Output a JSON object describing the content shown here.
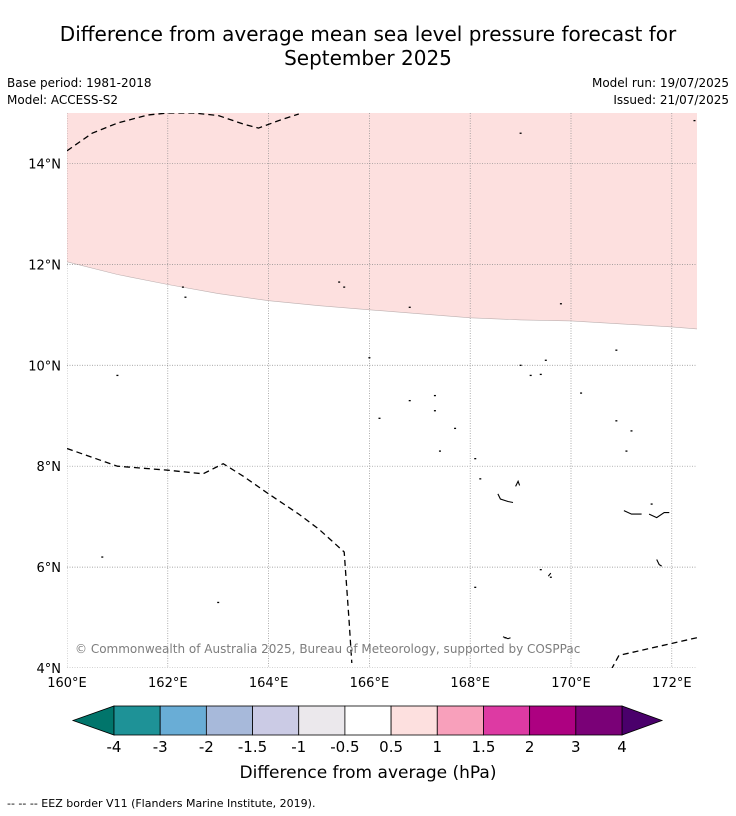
{
  "title_line1": "Difference from average mean sea level pressure forecast for",
  "title_line2": "September 2025",
  "base_period": "Base period: 1981-2018",
  "model": "Model: ACCESS-S2",
  "model_run": "Model run: 19/07/2025",
  "issued": "Issued: 21/07/2025",
  "copyright": "© Commonwealth of Australia 2025, Bureau of Meteorology, supported by COSPPac",
  "footer": "--  --  -- EEZ border V11 (Flanders Marine Institute, 2019).",
  "map": {
    "lon_range": [
      160,
      172.5
    ],
    "lat_range": [
      4,
      15
    ],
    "lon_ticks": [
      "160°E",
      "162°E",
      "164°E",
      "166°E",
      "168°E",
      "170°E",
      "172°E"
    ],
    "lat_ticks": [
      "4°N",
      "6°N",
      "8°N",
      "10°N",
      "12°N",
      "14°N"
    ],
    "anomaly_region": {
      "category": "0.5 to 1",
      "color": "#fde0df",
      "southern_boundary": [
        [
          160,
          12.05
        ],
        [
          161,
          11.8
        ],
        [
          162,
          11.6
        ],
        [
          163,
          11.42
        ],
        [
          164,
          11.28
        ],
        [
          165,
          11.18
        ],
        [
          166,
          11.1
        ],
        [
          167,
          11.02
        ],
        [
          168,
          10.94
        ],
        [
          169,
          10.9
        ],
        [
          170,
          10.88
        ],
        [
          171,
          10.82
        ],
        [
          172,
          10.76
        ],
        [
          172.5,
          10.72
        ]
      ]
    },
    "eez_north": [
      [
        160,
        14.25
      ],
      [
        160.5,
        14.6
      ],
      [
        161,
        14.8
      ],
      [
        161.6,
        14.96
      ],
      [
        162,
        15.0
      ],
      [
        162.5,
        15.0
      ],
      [
        163,
        14.95
      ],
      [
        163.5,
        14.78
      ],
      [
        163.8,
        14.7
      ],
      [
        164.2,
        14.85
      ],
      [
        164.6,
        14.98
      ]
    ],
    "eez_south": [
      [
        160,
        8.35
      ],
      [
        161,
        8.0
      ],
      [
        162,
        7.92
      ],
      [
        162.7,
        7.85
      ],
      [
        163.1,
        8.05
      ],
      [
        163.5,
        7.8
      ],
      [
        164,
        7.45
      ],
      [
        164.6,
        7.05
      ],
      [
        165,
        6.75
      ],
      [
        165.5,
        6.3
      ],
      [
        165.55,
        5.6
      ],
      [
        165.6,
        4.9
      ],
      [
        165.65,
        4.1
      ]
    ],
    "eez_southeast": [
      [
        170.8,
        3.97
      ],
      [
        170.95,
        4.25
      ],
      [
        172.5,
        4.6
      ]
    ],
    "islands": [
      [
        169.0,
        14.6
      ],
      [
        172.45,
        14.85
      ],
      [
        161.0,
        9.8
      ],
      [
        162.3,
        11.55
      ],
      [
        162.35,
        11.35
      ],
      [
        165.4,
        11.65
      ],
      [
        165.5,
        11.55
      ],
      [
        166.8,
        11.15
      ],
      [
        169.8,
        11.22
      ],
      [
        166.0,
        10.15
      ],
      [
        166.2,
        8.95
      ],
      [
        166.8,
        9.3
      ],
      [
        167.3,
        9.4
      ],
      [
        167.3,
        9.1
      ],
      [
        167.7,
        8.75
      ],
      [
        167.4,
        8.3
      ],
      [
        168.1,
        8.15
      ],
      [
        168.2,
        7.75
      ],
      [
        169.0,
        10.0
      ],
      [
        169.2,
        9.8
      ],
      [
        169.4,
        9.82
      ],
      [
        169.5,
        10.1
      ],
      [
        170.2,
        9.45
      ],
      [
        170.9,
        10.3
      ],
      [
        170.9,
        8.9
      ],
      [
        171.2,
        8.7
      ],
      [
        171.1,
        8.3
      ],
      [
        160.7,
        6.2
      ],
      [
        163.0,
        5.3
      ],
      [
        168.1,
        5.6
      ],
      [
        168.7,
        4.6
      ],
      [
        169.4,
        5.95
      ],
      [
        169.6,
        5.8
      ],
      [
        171.6,
        7.25
      ]
    ],
    "atoll_lines": [
      [
        [
          168.55,
          7.45
        ],
        [
          168.6,
          7.35
        ],
        [
          168.75,
          7.3
        ],
        [
          168.85,
          7.28
        ]
      ],
      [
        [
          168.9,
          7.6
        ],
        [
          168.95,
          7.7
        ],
        [
          168.98,
          7.62
        ]
      ],
      [
        [
          171.05,
          7.12
        ],
        [
          171.2,
          7.05
        ],
        [
          171.4,
          7.05
        ]
      ],
      [
        [
          171.55,
          7.05
        ],
        [
          171.7,
          6.98
        ],
        [
          171.85,
          7.08
        ],
        [
          171.95,
          7.08
        ]
      ],
      [
        [
          171.7,
          6.15
        ],
        [
          171.75,
          6.05
        ],
        [
          171.8,
          6.02
        ]
      ],
      [
        [
          169.55,
          5.82
        ],
        [
          169.6,
          5.88
        ]
      ],
      [
        [
          168.65,
          4.62
        ],
        [
          168.75,
          4.58
        ],
        [
          168.8,
          4.6
        ]
      ]
    ]
  },
  "colorbar": {
    "title": "Difference from average (hPa)",
    "labels": [
      "-4",
      "-3",
      "-2",
      "-1.5",
      "-1",
      "-0.5",
      "0.5",
      "1",
      "1.5",
      "2",
      "3",
      "4"
    ],
    "colors": [
      "#1e9297",
      "#69add6",
      "#a7b9da",
      "#cbcbe5",
      "#ebe8ec",
      "#ffffff",
      "#fde0df",
      "#f8a0bb",
      "#dd3aa3",
      "#ad0181",
      "#7a0177"
    ],
    "extend_low_color": "#01756b",
    "extend_high_color": "#4a006b"
  }
}
